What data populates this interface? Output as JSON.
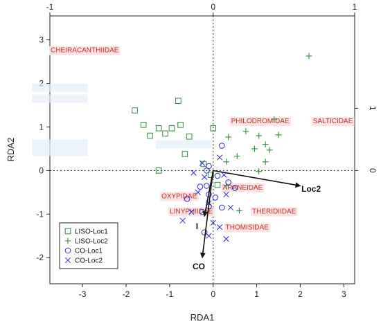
{
  "chart_data": {
    "type": "scatter",
    "xlabel": "RDA1",
    "ylabel": "RDA2",
    "xlim": [
      -3.75,
      3.25
    ],
    "ylim": [
      -2.6,
      3.55
    ],
    "x_ticks": [
      -3,
      -2,
      -1,
      0,
      1,
      2,
      3
    ],
    "x_tick_labels": [
      "-3",
      "-2",
      "-1",
      "0",
      "1",
      "2",
      "3"
    ],
    "y_ticks": [
      -2,
      -1,
      0,
      1,
      2,
      3
    ],
    "y_tick_labels": [
      "-2",
      "-1",
      "0",
      "1",
      "2",
      "3"
    ],
    "top_ticks": [
      -3.75,
      0,
      3.25
    ],
    "top_tick_labels": [
      "-1",
      "0",
      "1"
    ],
    "right_ticks": [
      0,
      1.43
    ],
    "right_tick_labels": [
      "0",
      "1"
    ],
    "colors": {
      "liso_loc1": "#2e8b3a",
      "liso_loc2": "#2e8b3a",
      "co_loc1": "#2a2ad0",
      "co_loc2": "#2a2ad0",
      "species_text": "#c0322b",
      "species_bg": "#fbe3e4",
      "arrow": "#111111"
    },
    "series": [
      {
        "name": "LISO-Loc1",
        "marker": "square",
        "points": [
          [
            -1.8,
            1.38
          ],
          [
            -1.6,
            1.05
          ],
          [
            -1.45,
            0.8
          ],
          [
            -1.25,
            0.97
          ],
          [
            -1.1,
            0.85
          ],
          [
            -0.95,
            0.97
          ],
          [
            -0.75,
            1.05
          ],
          [
            -0.8,
            1.6
          ],
          [
            -0.55,
            0.78
          ],
          [
            -0.65,
            0.38
          ],
          [
            -0.22,
            0.15
          ],
          [
            -1.25,
            0.0
          ],
          [
            0.0,
            0.97
          ],
          [
            0.1,
            -0.33
          ],
          [
            -0.05,
            -0.1
          ]
        ]
      },
      {
        "name": "LISO-Loc2",
        "marker": "plus",
        "points": [
          [
            2.2,
            2.63
          ],
          [
            1.4,
            1.18
          ],
          [
            1.5,
            0.82
          ],
          [
            0.75,
            0.9
          ],
          [
            1.05,
            0.8
          ],
          [
            0.35,
            0.77
          ],
          [
            1.2,
            0.6
          ],
          [
            1.3,
            0.47
          ],
          [
            1.2,
            0.2
          ],
          [
            0.55,
            0.33
          ],
          [
            0.95,
            0.5
          ],
          [
            0.3,
            0.2
          ],
          [
            1.05,
            -0.02
          ],
          [
            0.6,
            -0.92
          ],
          [
            0.3,
            -0.35
          ]
        ]
      },
      {
        "name": "CO-Loc1",
        "marker": "circle",
        "points": [
          [
            0.2,
            0.57
          ],
          [
            -0.15,
            0.0
          ],
          [
            -0.1,
            0.1
          ],
          [
            -0.3,
            -0.37
          ],
          [
            -0.15,
            -0.35
          ],
          [
            -0.1,
            -0.55
          ],
          [
            -0.1,
            -0.82
          ],
          [
            0.05,
            -0.62
          ],
          [
            -0.6,
            -0.65
          ],
          [
            0.2,
            -0.85
          ],
          [
            0.5,
            -0.4
          ],
          [
            -0.25,
            -0.95
          ],
          [
            -0.2,
            -1.42
          ],
          [
            0.35,
            -0.27
          ],
          [
            0.1,
            -0.12
          ]
        ]
      },
      {
        "name": "CO-Loc2",
        "marker": "cross",
        "points": [
          [
            0.15,
            0.3
          ],
          [
            -0.25,
            0.17
          ],
          [
            -0.45,
            -0.05
          ],
          [
            -0.2,
            -0.15
          ],
          [
            0.25,
            -0.1
          ],
          [
            -0.35,
            -0.5
          ],
          [
            -0.1,
            -0.75
          ],
          [
            0.3,
            -0.55
          ],
          [
            -0.5,
            -0.95
          ],
          [
            -0.7,
            -1.15
          ],
          [
            0.0,
            -1.2
          ],
          [
            0.15,
            -1.3
          ],
          [
            -0.1,
            -1.5
          ],
          [
            0.3,
            -1.57
          ],
          [
            0.4,
            -0.85
          ]
        ]
      }
    ],
    "species": [
      {
        "name": "CHEIRACANTHIIDAE",
        "x": -2.95,
        "y": 2.77
      },
      {
        "name": "PHILODROMIDAE",
        "x": 1.08,
        "y": 1.14
      },
      {
        "name": "SALTICIDAE",
        "x": 2.75,
        "y": 1.14
      },
      {
        "name": "ARANEIDAE",
        "x": 0.68,
        "y": -0.38
      },
      {
        "name": "OXYPIDAE",
        "x": -0.78,
        "y": -0.58
      },
      {
        "name": "LINYPHIIDAE",
        "x": -0.5,
        "y": -0.93
      },
      {
        "name": "THERIDIIDAE",
        "x": 1.4,
        "y": -0.93
      },
      {
        "name": "THOMISIDAE",
        "x": 0.78,
        "y": -1.3
      }
    ],
    "faded_labels": [
      {
        "x": -3.52,
        "y": 1.9
      },
      {
        "x": -3.52,
        "y": 1.65
      },
      {
        "x": -3.52,
        "y": 0.62
      },
      {
        "x": -3.52,
        "y": 0.43
      },
      {
        "x": -0.68,
        "y": 0.6
      }
    ],
    "env_vectors": [
      {
        "name": "Loc2",
        "x": 2.0,
        "y": -0.35,
        "label_x": 2.25,
        "label_y": -0.42
      },
      {
        "name": "CO",
        "x": -0.25,
        "y": -2.0,
        "label_x": -0.33,
        "label_y": -2.2
      },
      {
        "name": "I",
        "x": -0.2,
        "y": -1.05,
        "label_x": -0.37,
        "label_y": -1.28
      }
    ],
    "legend": {
      "position": "bottom-left",
      "entries": [
        "LISO-Loc1",
        "LISO-Loc2",
        "CO-Loc1",
        "CO-Loc2"
      ]
    }
  }
}
